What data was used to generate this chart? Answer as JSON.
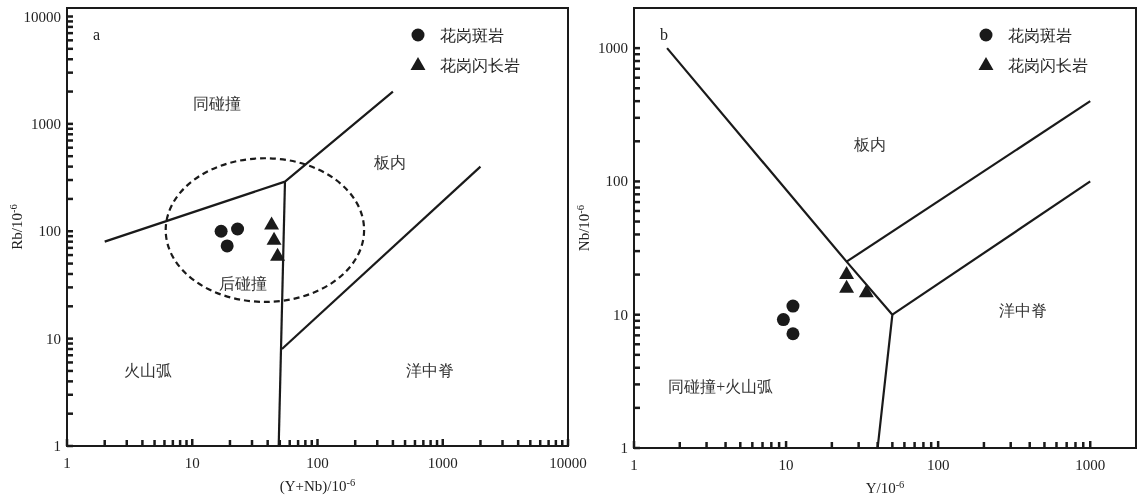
{
  "chart_data": [
    {
      "type": "scatter",
      "title": "a",
      "xlabel": "(Y+Nb)/10$^{-6}$",
      "ylabel": "Rb/10$^{-6}$",
      "log": "xy",
      "legend": "top right",
      "xlim": [
        1,
        10000
      ],
      "ylim": [
        1,
        12000
      ],
      "xticks": [
        1,
        {
          "value": 2,
          "label": null
        },
        {
          "value": 3,
          "label": null
        },
        {
          "value": 4,
          "label": null
        },
        {
          "value": 5,
          "label": null
        },
        {
          "value": 6,
          "label": null
        },
        {
          "value": 7,
          "label": null
        },
        {
          "value": 8,
          "label": null
        },
        {
          "value": 9,
          "label": null
        },
        10,
        {
          "value": 20,
          "label": null
        },
        {
          "value": 30,
          "label": null
        },
        {
          "value": 40,
          "label": null
        },
        {
          "value": 50,
          "label": null
        },
        {
          "value": 60,
          "label": null
        },
        {
          "value": 70,
          "label": null
        },
        {
          "value": 80,
          "label": null
        },
        {
          "value": 90,
          "label": null
        },
        100,
        {
          "value": 200,
          "label": null
        },
        {
          "value": 300,
          "label": null
        },
        {
          "value": 400,
          "label": null
        },
        {
          "value": 500,
          "label": null
        },
        {
          "value": 600,
          "label": null
        },
        {
          "value": 700,
          "label": null
        },
        {
          "value": 800,
          "label": null
        },
        {
          "value": 900,
          "label": null
        },
        1000,
        {
          "value": 2000,
          "label": null
        },
        {
          "value": 3000,
          "label": null
        },
        {
          "value": 4000,
          "label": null
        },
        {
          "value": 5000,
          "label": null
        },
        {
          "value": 6000,
          "label": null
        },
        {
          "value": 7000,
          "label": null
        },
        {
          "value": 8000,
          "label": null
        },
        {
          "value": 9000,
          "label": null
        },
        10000
      ],
      "yticks": [
        1,
        {
          "value": 2,
          "label": null
        },
        {
          "value": 3,
          "label": null
        },
        {
          "value": 4,
          "label": null
        },
        {
          "value": 5,
          "label": null
        },
        {
          "value": 6,
          "label": null
        },
        {
          "value": 7,
          "label": null
        },
        {
          "value": 8,
          "label": null
        },
        {
          "value": 9,
          "label": null
        },
        10,
        {
          "value": 20,
          "label": null
        },
        {
          "value": 30,
          "label": null
        },
        {
          "value": 40,
          "label": null
        },
        {
          "value": 50,
          "label": null
        },
        {
          "value": 60,
          "label": null
        },
        {
          "value": 70,
          "label": null
        },
        {
          "value": 80,
          "label": null
        },
        {
          "value": 90,
          "label": null
        },
        100,
        {
          "value": 200,
          "label": null
        },
        {
          "value": 300,
          "label": null
        },
        {
          "value": 400,
          "label": null
        },
        {
          "value": 500,
          "label": null
        },
        {
          "value": 600,
          "label": null
        },
        {
          "value": 700,
          "label": null
        },
        {
          "value": 800,
          "label": null
        },
        {
          "value": 900,
          "label": null
        },
        1000,
        {
          "value": 2000,
          "label": null
        },
        {
          "value": 3000,
          "label": null
        },
        {
          "value": 4000,
          "label": null
        },
        {
          "value": 5000,
          "label": null
        },
        {
          "value": 6000,
          "label": null
        },
        {
          "value": 7000,
          "label": null
        },
        {
          "value": 8000,
          "label": null
        },
        {
          "value": 9000,
          "label": null
        },
        10000
      ],
      "series": [
        {
          "type": "line",
          "color": "#1a1a1a",
          "marker": "none",
          "line_style": "solid",
          "x": [
            2,
            55,
            400
          ],
          "values": [
            80,
            290,
            2000
          ]
        },
        {
          "type": "line",
          "color": "#1a1a1a",
          "marker": "none",
          "line_style": "solid",
          "x": [
            55,
            49
          ],
          "values": [
            290,
            1
          ]
        },
        {
          "type": "line",
          "color": "#1a1a1a",
          "marker": "none",
          "line_style": "solid",
          "x": [
            52,
            2000
          ],
          "values": [
            8,
            400
          ]
        },
        {
          "name": "花岗斑岩",
          "marker": "circle",
          "color": "#1a1a1a",
          "x": [
            17,
            23,
            19
          ],
          "values": [
            100,
            105,
            73
          ]
        },
        {
          "name": "花岗闪长岩",
          "marker": "triangle",
          "color": "#1a1a1a",
          "x": [
            43,
            45,
            48
          ],
          "values": [
            115,
            83,
            59
          ]
        }
      ],
      "annotations": [
        "同碰撞",
        "板内",
        "后碰撞",
        "火山弧",
        "洋中脊"
      ]
    },
    {
      "type": "scatter",
      "title": "b",
      "xlabel": "Y/10$^{-6}$",
      "ylabel": "Nb/10$^{-6}$",
      "log": "xy",
      "legend": "top right",
      "xlim": [
        1,
        2000
      ],
      "ylim": [
        1,
        2000
      ],
      "xticks": [
        1,
        {
          "value": 2,
          "label": null
        },
        {
          "value": 3,
          "label": null
        },
        {
          "value": 4,
          "label": null
        },
        {
          "value": 5,
          "label": null
        },
        {
          "value": 6,
          "label": null
        },
        {
          "value": 7,
          "label": null
        },
        {
          "value": 8,
          "label": null
        },
        {
          "value": 9,
          "label": null
        },
        10,
        {
          "value": 20,
          "label": null
        },
        {
          "value": 30,
          "label": null
        },
        {
          "value": 40,
          "label": null
        },
        {
          "value": 50,
          "label": null
        },
        {
          "value": 60,
          "label": null
        },
        {
          "value": 70,
          "label": null
        },
        {
          "value": 80,
          "label": null
        },
        {
          "value": 90,
          "label": null
        },
        100,
        {
          "value": 200,
          "label": null
        },
        {
          "value": 300,
          "label": null
        },
        {
          "value": 400,
          "label": null
        },
        {
          "value": 500,
          "label": null
        },
        {
          "value": 600,
          "label": null
        },
        {
          "value": 700,
          "label": null
        },
        {
          "value": 800,
          "label": null
        },
        {
          "value": 900,
          "label": null
        },
        1000
      ],
      "yticks": [
        1,
        {
          "value": 2,
          "label": null
        },
        {
          "value": 3,
          "label": null
        },
        {
          "value": 4,
          "label": null
        },
        {
          "value": 5,
          "label": null
        },
        {
          "value": 6,
          "label": null
        },
        {
          "value": 7,
          "label": null
        },
        {
          "value": 8,
          "label": null
        },
        {
          "value": 9,
          "label": null
        },
        10,
        {
          "value": 20,
          "label": null
        },
        {
          "value": 30,
          "label": null
        },
        {
          "value": 40,
          "label": null
        },
        {
          "value": 50,
          "label": null
        },
        {
          "value": 60,
          "label": null
        },
        {
          "value": 70,
          "label": null
        },
        {
          "value": 80,
          "label": null
        },
        {
          "value": 90,
          "label": null
        },
        100,
        {
          "value": 200,
          "label": null
        },
        {
          "value": 300,
          "label": null
        },
        {
          "value": 400,
          "label": null
        },
        {
          "value": 500,
          "label": null
        },
        {
          "value": 600,
          "label": null
        },
        {
          "value": 700,
          "label": null
        },
        {
          "value": 800,
          "label": null
        },
        {
          "value": 900,
          "label": null
        },
        1000
      ],
      "series": [
        {
          "type": "line",
          "color": "#1a1a1a",
          "marker": "none",
          "line_style": "solid",
          "x": [
            1.65,
            25,
            50,
            40
          ],
          "values": [
            1000,
            25,
            10,
            1
          ]
        },
        {
          "type": "line",
          "color": "#1a1a1a",
          "marker": "none",
          "line_style": "solid",
          "x": [
            25,
            1000
          ],
          "values": [
            25,
            400
          ]
        },
        {
          "type": "line",
          "color": "#1a1a1a",
          "marker": "none",
          "line_style": "solid",
          "x": [
            50,
            1000
          ],
          "values": [
            10,
            100
          ]
        },
        {
          "name": "花岗斑岩",
          "marker": "circle",
          "color": "#1a1a1a",
          "x": [
            11.1,
            9.6,
            11.1
          ],
          "values": [
            11.6,
            9.2,
            7.2
          ]
        },
        {
          "name": "花岗闪长岩",
          "marker": "triangle",
          "color": "#1a1a1a",
          "x": [
            25,
            25,
            33.7
          ],
          "values": [
            20.2,
            15.9,
            14.7
          ]
        }
      ],
      "annotations": [
        "板内",
        "洋中脊",
        "同碰撞+火山弧"
      ]
    }
  ]
}
